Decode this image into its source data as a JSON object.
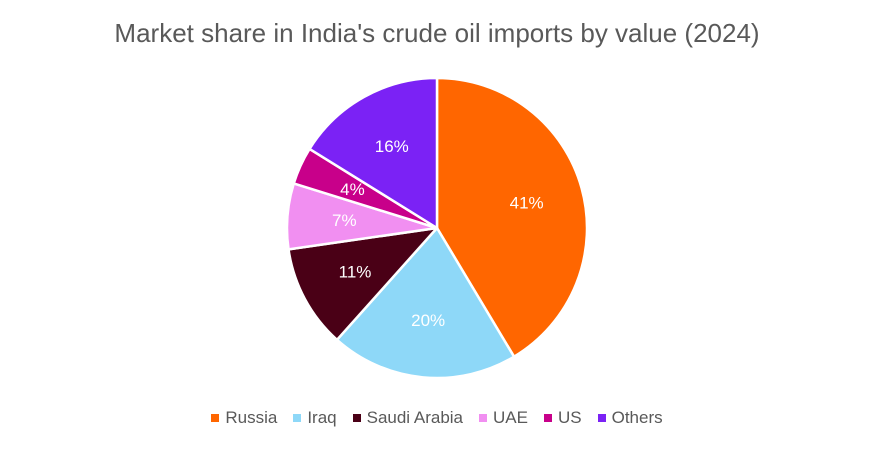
{
  "chart_data": {
    "type": "pie",
    "title": "Market share in India's crude oil imports by value (2024)",
    "categories": [
      "Russia",
      "Iraq",
      "Saudi Arabia",
      "UAE",
      "US",
      "Others"
    ],
    "values": [
      41,
      20,
      11,
      7,
      4,
      16
    ],
    "data_labels": [
      "41%",
      "20%",
      "11%",
      "7%",
      "4%",
      "16%"
    ],
    "colors": [
      "#ff6600",
      "#8ed8f8",
      "#4a0016",
      "#f18ff1",
      "#c8008a",
      "#7b22f5"
    ],
    "label_colors": [
      "#ffffff",
      "#ffffff",
      "#ffffff",
      "#ffffff",
      "#ffffff",
      "#ffffff"
    ],
    "legend_position": "bottom",
    "start_angle": "top, clockwise"
  }
}
